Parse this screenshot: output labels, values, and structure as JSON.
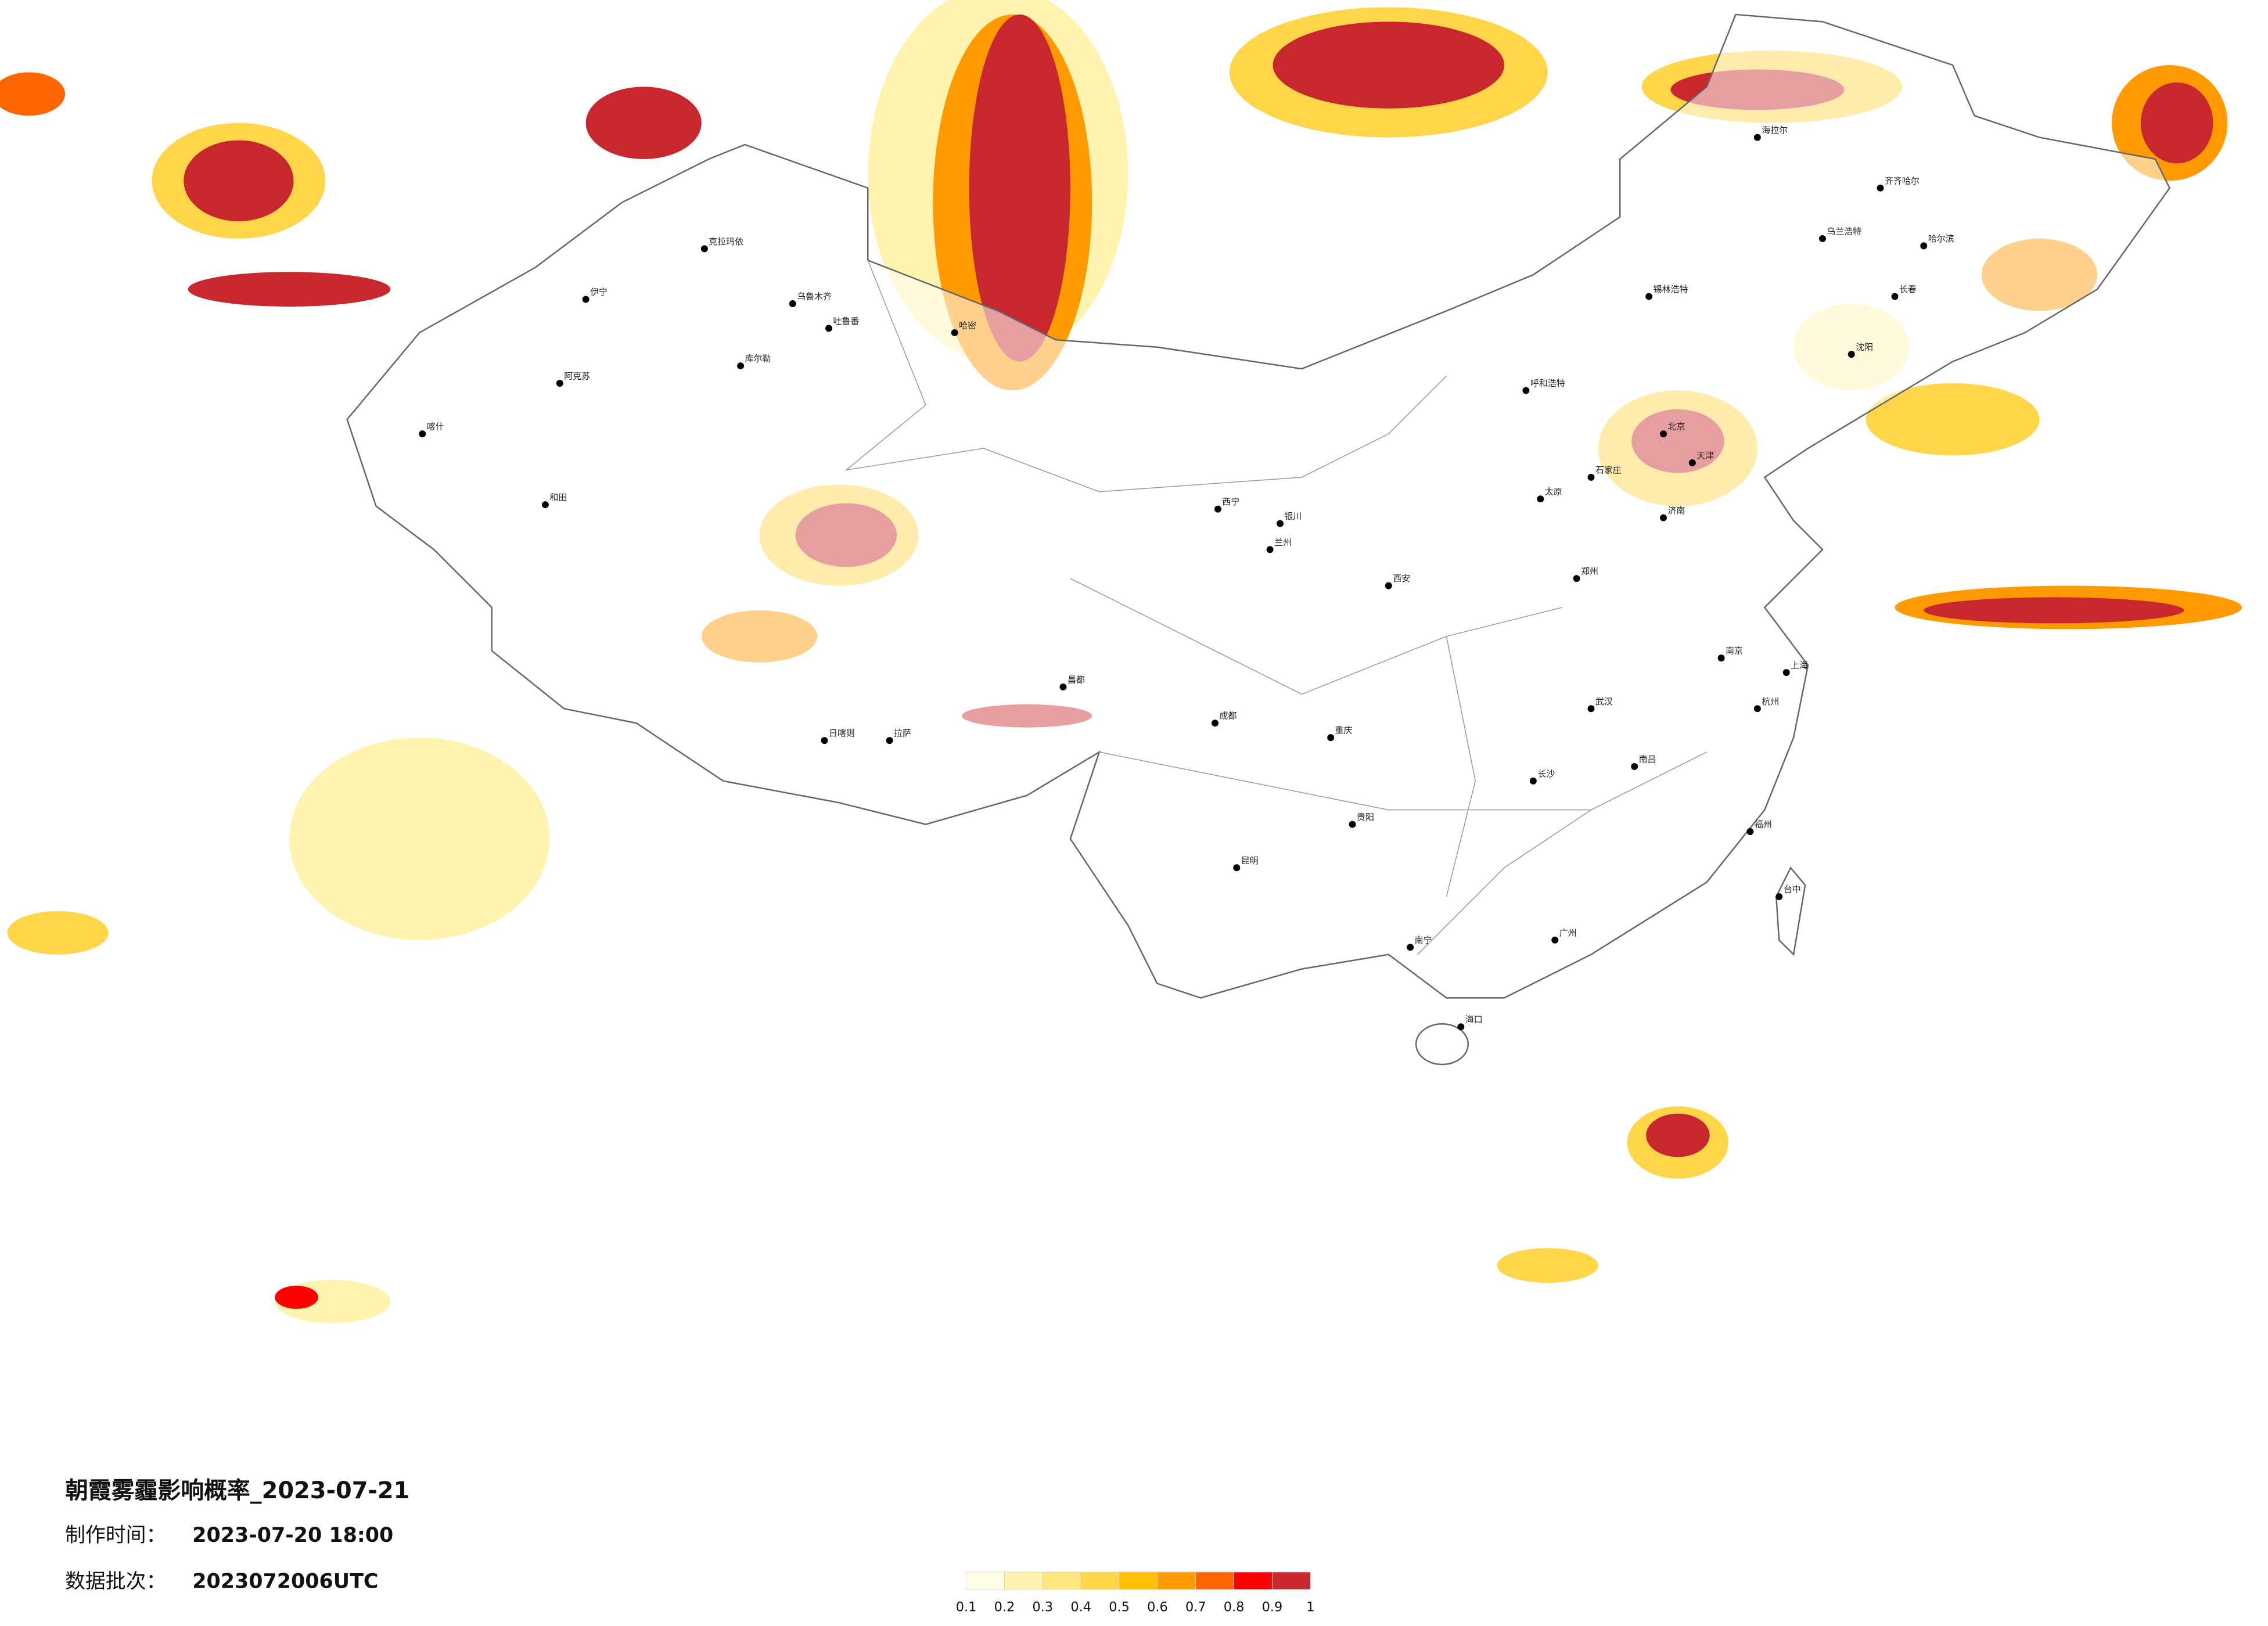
{
  "title": "朝霞雾霾影响概率_2023-07-21",
  "made_label": "制作时间：",
  "made_time": "2023-07-20 18:00",
  "batch_label": "数据批次：",
  "batch": "2023072006UTC",
  "legend": {
    "ticks": [
      0.1,
      0.2,
      0.3,
      0.4,
      0.5,
      0.6,
      0.7,
      0.8,
      0.9,
      1
    ],
    "colors": [
      "#fffde6",
      "#fff3b0",
      "#ffe680",
      "#ffd54a",
      "#ffc000",
      "#ff9a00",
      "#ff6600",
      "#ff0000",
      "#c8282d"
    ]
  },
  "cities": [
    "克拉玛依",
    "伊宁",
    "乌鲁木齐",
    "吐鲁番",
    "库尔勒",
    "阿克苏",
    "喀什",
    "和田",
    "哈密",
    "日喀则",
    "拉萨",
    "昌都",
    "西宁",
    "兰州",
    "银川",
    "呼和浩特",
    "北京",
    "天津",
    "石家庄",
    "太原",
    "济南",
    "郑州",
    "西安",
    "成都",
    "重庆",
    "武汉",
    "长沙",
    "南昌",
    "南京",
    "上海",
    "杭州",
    "福州",
    "广州",
    "南宁",
    "海口",
    "贵阳",
    "昆明",
    "哈尔滨",
    "长春",
    "沈阳",
    "台中",
    "海拉尔",
    "齐齐哈尔",
    "乌兰浩特",
    "锡林浩特"
  ]
}
